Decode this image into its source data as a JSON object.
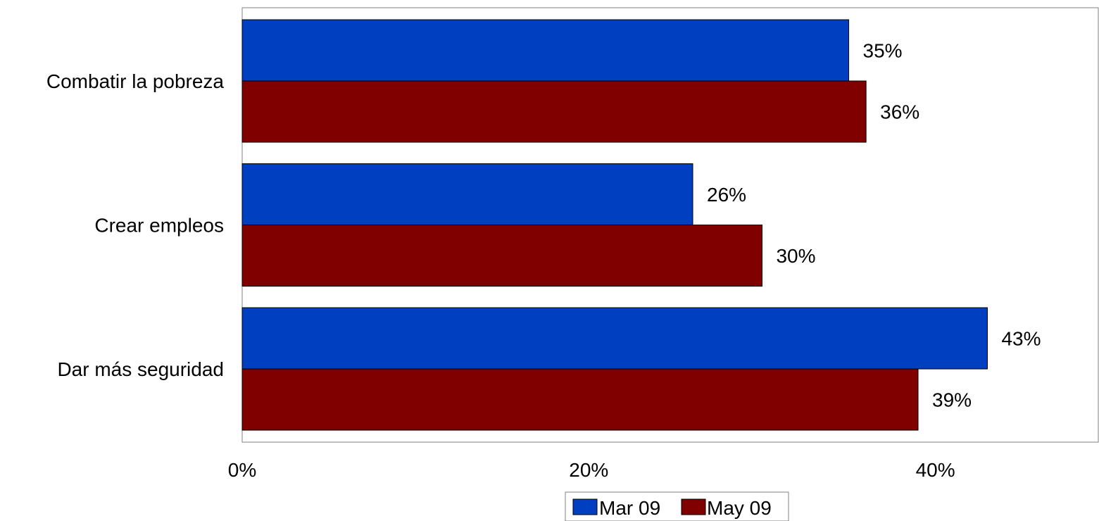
{
  "chart_data": {
    "type": "bar",
    "orientation": "horizontal",
    "categories": [
      "Combatir la pobreza",
      "Crear empleos",
      "Dar más seguridad"
    ],
    "series": [
      {
        "name": "Mar 09",
        "values": [
          35,
          26,
          43
        ],
        "labels": [
          "35%",
          "26%",
          "43%"
        ],
        "color": "#0040C0"
      },
      {
        "name": "May 09",
        "values": [
          36,
          30,
          39
        ],
        "labels": [
          "36%",
          "30%",
          "39%"
        ],
        "color": "#800000"
      }
    ],
    "x_ticks": [
      {
        "value": 0,
        "label": "0%"
      },
      {
        "value": 20,
        "label": "20%"
      },
      {
        "value": 40,
        "label": "40%"
      }
    ],
    "xlim": [
      0,
      49.4
    ],
    "grid": false,
    "legend": {
      "position": "bottom",
      "entries": [
        "Mar 09",
        "May 09"
      ]
    },
    "border_color": "#808080"
  }
}
